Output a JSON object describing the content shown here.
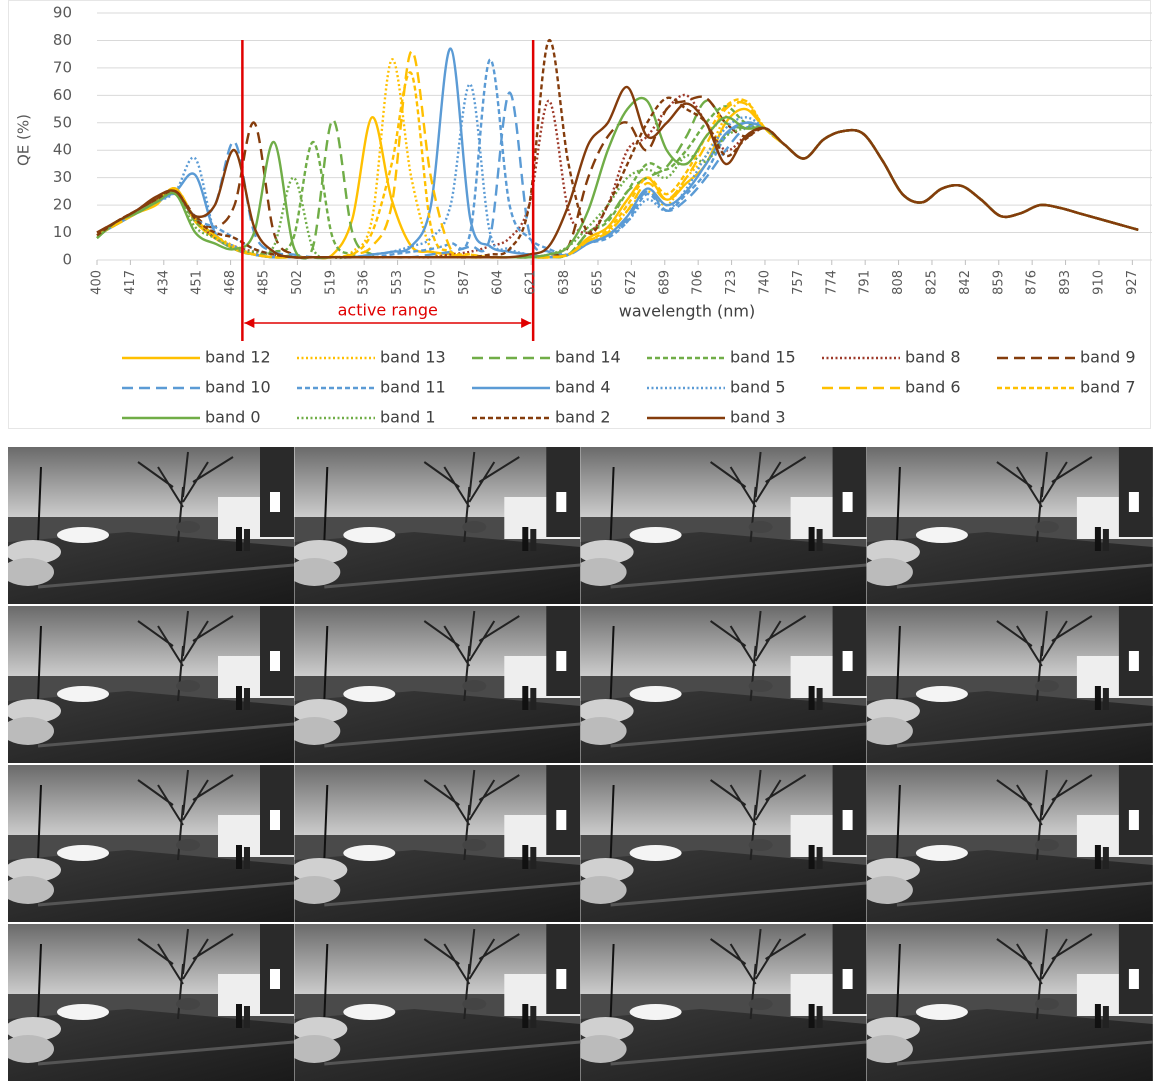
{
  "chart_data": {
    "type": "line",
    "y_label": "QE (%)",
    "x_label": "wavelength (nm)",
    "xlim": [
      400,
      937
    ],
    "ylim": [
      0,
      90
    ],
    "xticks": [
      400,
      417,
      434,
      451,
      468,
      485,
      502,
      519,
      536,
      553,
      570,
      587,
      604,
      621,
      638,
      655,
      672,
      689,
      706,
      723,
      740,
      757,
      774,
      791,
      808,
      825,
      842,
      859,
      876,
      893,
      910,
      927
    ],
    "yticks": [
      0,
      10,
      20,
      30,
      40,
      50,
      60,
      70,
      80,
      90
    ],
    "grid": true,
    "annotation": {
      "label": "active range",
      "x": [
        474,
        622
      ],
      "color": "#e00000"
    },
    "x": [
      400,
      410,
      420,
      430,
      440,
      450,
      460,
      470,
      480,
      490,
      500,
      510,
      520,
      530,
      540,
      550,
      560,
      570,
      580,
      590,
      600,
      610,
      620,
      630,
      640,
      650,
      660,
      670,
      680,
      690,
      700,
      710,
      720,
      730,
      740,
      750,
      760,
      770,
      780,
      790,
      800,
      810,
      820,
      830,
      840,
      850,
      860,
      870,
      880,
      890,
      900,
      910,
      920,
      930
    ],
    "series": [
      {
        "name": "band 12",
        "color": "#ffc000",
        "style": "solid",
        "values": [
          9,
          13,
          17,
          20,
          26,
          14,
          8,
          4,
          2,
          1,
          1,
          1,
          2,
          15,
          52,
          22,
          5,
          3,
          2,
          1,
          1,
          1,
          1,
          1,
          2,
          8,
          12,
          22,
          30,
          22,
          28,
          35,
          50,
          55,
          48,
          42,
          37,
          44,
          47,
          46,
          36,
          24,
          21,
          26,
          27,
          22,
          16,
          17,
          20,
          19,
          17,
          15,
          13,
          11
        ]
      },
      {
        "name": "band 13",
        "color": "#ffc000",
        "style": "dotted",
        "values": [
          9,
          13,
          17,
          21,
          25,
          15,
          9,
          5,
          2,
          1,
          1,
          1,
          1,
          3,
          15,
          73,
          30,
          4,
          2,
          1,
          1,
          1,
          1,
          1,
          2,
          7,
          10,
          18,
          25,
          20,
          30,
          38,
          52,
          58,
          48,
          42,
          37,
          44,
          47,
          46,
          36,
          24,
          21,
          26,
          27,
          22,
          16,
          17,
          20,
          19,
          17,
          15,
          13,
          11
        ]
      },
      {
        "name": "band 14",
        "color": "#70ad47",
        "style": "dashed",
        "values": [
          8,
          14,
          17,
          21,
          24,
          15,
          9,
          4,
          2,
          1,
          2,
          5,
          51,
          10,
          2,
          1,
          1,
          1,
          1,
          1,
          1,
          1,
          1,
          1,
          2,
          10,
          15,
          25,
          30,
          34,
          45,
          58,
          50,
          48,
          48,
          42,
          37,
          44,
          47,
          46,
          36,
          24,
          21,
          26,
          27,
          22,
          16,
          17,
          20,
          19,
          17,
          15,
          13,
          11
        ]
      },
      {
        "name": "band 15",
        "color": "#70ad47",
        "style": "short-dash",
        "values": [
          8,
          14,
          17,
          21,
          24,
          14,
          9,
          4,
          2,
          3,
          8,
          43,
          8,
          2,
          1,
          1,
          1,
          1,
          1,
          1,
          1,
          1,
          1,
          1,
          2,
          10,
          14,
          25,
          35,
          33,
          40,
          50,
          56,
          50,
          48,
          42,
          37,
          44,
          47,
          46,
          36,
          24,
          21,
          26,
          27,
          22,
          16,
          17,
          20,
          19,
          17,
          15,
          13,
          11
        ]
      },
      {
        "name": "band 8",
        "color": "#9e3a2a",
        "style": "dotted",
        "values": [
          9,
          14,
          18,
          22,
          24,
          15,
          8,
          5,
          3,
          2,
          1,
          1,
          1,
          1,
          1,
          1,
          1,
          1,
          2,
          3,
          5,
          8,
          20,
          58,
          18,
          10,
          20,
          40,
          45,
          55,
          60,
          50,
          40,
          45,
          48,
          42,
          37,
          44,
          47,
          46,
          36,
          24,
          21,
          26,
          27,
          22,
          16,
          17,
          20,
          19,
          17,
          15,
          13,
          11
        ]
      },
      {
        "name": "band 9",
        "color": "#843c0c",
        "style": "dashed",
        "values": [
          10,
          14,
          18,
          22,
          25,
          16,
          12,
          20,
          50,
          10,
          2,
          1,
          1,
          1,
          1,
          1,
          1,
          1,
          1,
          1,
          1,
          1,
          1,
          2,
          5,
          30,
          45,
          50,
          40,
          55,
          58,
          59,
          50,
          45,
          48,
          42,
          37,
          44,
          47,
          46,
          36,
          24,
          21,
          26,
          27,
          22,
          16,
          17,
          20,
          19,
          17,
          15,
          13,
          11
        ]
      },
      {
        "name": "band 10",
        "color": "#5b9bd5",
        "style": "dashed",
        "values": [
          9,
          13,
          17,
          21,
          26,
          16,
          20,
          43,
          10,
          3,
          2,
          1,
          1,
          1,
          1,
          1,
          1,
          2,
          3,
          5,
          8,
          61,
          10,
          3,
          2,
          6,
          9,
          15,
          25,
          18,
          22,
          30,
          40,
          48,
          48,
          42,
          37,
          44,
          47,
          46,
          36,
          24,
          21,
          26,
          27,
          22,
          16,
          17,
          20,
          19,
          17,
          15,
          13,
          11
        ]
      },
      {
        "name": "band 11",
        "color": "#5b9bd5",
        "style": "short-dash",
        "values": [
          9,
          13,
          17,
          21,
          25,
          15,
          12,
          8,
          4,
          2,
          1,
          1,
          1,
          1,
          1,
          2,
          3,
          4,
          6,
          10,
          73,
          20,
          8,
          4,
          2,
          6,
          8,
          14,
          24,
          18,
          24,
          32,
          45,
          50,
          48,
          42,
          37,
          44,
          47,
          46,
          36,
          24,
          21,
          26,
          27,
          22,
          16,
          17,
          20,
          19,
          17,
          15,
          13,
          11
        ]
      },
      {
        "name": "band 4",
        "color": "#5b9bd5",
        "style": "solid",
        "values": [
          9,
          13,
          17,
          21,
          25,
          31,
          10,
          4,
          2,
          1,
          1,
          1,
          1,
          1,
          2,
          3,
          5,
          20,
          77,
          15,
          5,
          3,
          2,
          1,
          2,
          6,
          9,
          16,
          26,
          20,
          25,
          35,
          46,
          50,
          48,
          42,
          37,
          44,
          47,
          46,
          36,
          24,
          21,
          26,
          27,
          22,
          16,
          17,
          20,
          19,
          17,
          15,
          13,
          11
        ]
      },
      {
        "name": "band 5",
        "color": "#5b9bd5",
        "style": "dotted",
        "values": [
          9,
          13,
          17,
          21,
          25,
          37,
          10,
          5,
          2,
          1,
          1,
          1,
          1,
          1,
          2,
          3,
          5,
          8,
          20,
          64,
          10,
          4,
          2,
          1,
          2,
          6,
          9,
          14,
          22,
          18,
          26,
          38,
          48,
          52,
          48,
          42,
          37,
          44,
          47,
          46,
          36,
          24,
          21,
          26,
          27,
          22,
          16,
          17,
          20,
          19,
          17,
          15,
          13,
          11
        ]
      },
      {
        "name": "band 6",
        "color": "#ffc000",
        "style": "dashed",
        "values": [
          9,
          13,
          17,
          21,
          26,
          15,
          9,
          4,
          2,
          1,
          1,
          1,
          1,
          2,
          5,
          20,
          76,
          30,
          4,
          2,
          1,
          1,
          1,
          1,
          2,
          7,
          10,
          18,
          28,
          22,
          30,
          42,
          55,
          57,
          48,
          42,
          37,
          44,
          47,
          46,
          36,
          24,
          21,
          26,
          27,
          22,
          16,
          17,
          20,
          19,
          17,
          15,
          13,
          11
        ]
      },
      {
        "name": "band 7",
        "color": "#ffc000",
        "style": "short-dash",
        "values": [
          9,
          13,
          17,
          21,
          25,
          15,
          9,
          4,
          2,
          1,
          1,
          1,
          1,
          2,
          10,
          35,
          68,
          12,
          3,
          2,
          1,
          1,
          1,
          1,
          2,
          7,
          11,
          20,
          30,
          24,
          32,
          45,
          56,
          58,
          48,
          42,
          37,
          44,
          47,
          46,
          36,
          24,
          21,
          26,
          27,
          22,
          16,
          17,
          20,
          19,
          17,
          15,
          13,
          11
        ]
      },
      {
        "name": "band 0",
        "color": "#70ad47",
        "style": "solid",
        "values": [
          8,
          14,
          17,
          21,
          24,
          10,
          6,
          4,
          10,
          43,
          5,
          1,
          1,
          1,
          1,
          1,
          1,
          1,
          1,
          1,
          1,
          1,
          1,
          2,
          5,
          18,
          40,
          55,
          58,
          40,
          35,
          45,
          52,
          48,
          48,
          42,
          37,
          44,
          47,
          46,
          36,
          24,
          21,
          26,
          27,
          22,
          16,
          17,
          20,
          19,
          17,
          15,
          13,
          11
        ]
      },
      {
        "name": "band 1",
        "color": "#70ad47",
        "style": "dotted",
        "values": [
          8,
          14,
          17,
          21,
          24,
          12,
          8,
          4,
          3,
          5,
          30,
          4,
          1,
          1,
          1,
          1,
          1,
          1,
          1,
          1,
          1,
          1,
          1,
          2,
          5,
          12,
          20,
          30,
          33,
          30,
          38,
          36,
          45,
          48,
          48,
          42,
          37,
          44,
          47,
          46,
          36,
          24,
          21,
          26,
          27,
          22,
          16,
          17,
          20,
          19,
          17,
          15,
          13,
          11
        ]
      },
      {
        "name": "band 2",
        "color": "#843c0c",
        "style": "short-dash",
        "values": [
          9,
          14,
          18,
          22,
          25,
          15,
          10,
          8,
          4,
          2,
          1,
          1,
          1,
          1,
          1,
          1,
          1,
          1,
          1,
          1,
          2,
          4,
          20,
          80,
          35,
          10,
          20,
          35,
          50,
          59,
          55,
          50,
          38,
          44,
          48,
          42,
          37,
          44,
          47,
          46,
          36,
          24,
          21,
          26,
          27,
          22,
          16,
          17,
          20,
          19,
          17,
          15,
          13,
          11
        ]
      },
      {
        "name": "band 3",
        "color": "#843c0c",
        "style": "solid",
        "values": [
          10,
          14,
          18,
          23,
          25,
          16,
          20,
          40,
          12,
          3,
          1,
          1,
          1,
          1,
          1,
          1,
          1,
          1,
          1,
          1,
          1,
          1,
          2,
          5,
          20,
          42,
          50,
          63,
          45,
          50,
          57,
          50,
          35,
          45,
          48,
          42,
          37,
          44,
          47,
          46,
          36,
          24,
          21,
          26,
          27,
          22,
          16,
          17,
          20,
          19,
          17,
          15,
          13,
          11
        ]
      }
    ]
  }
}
